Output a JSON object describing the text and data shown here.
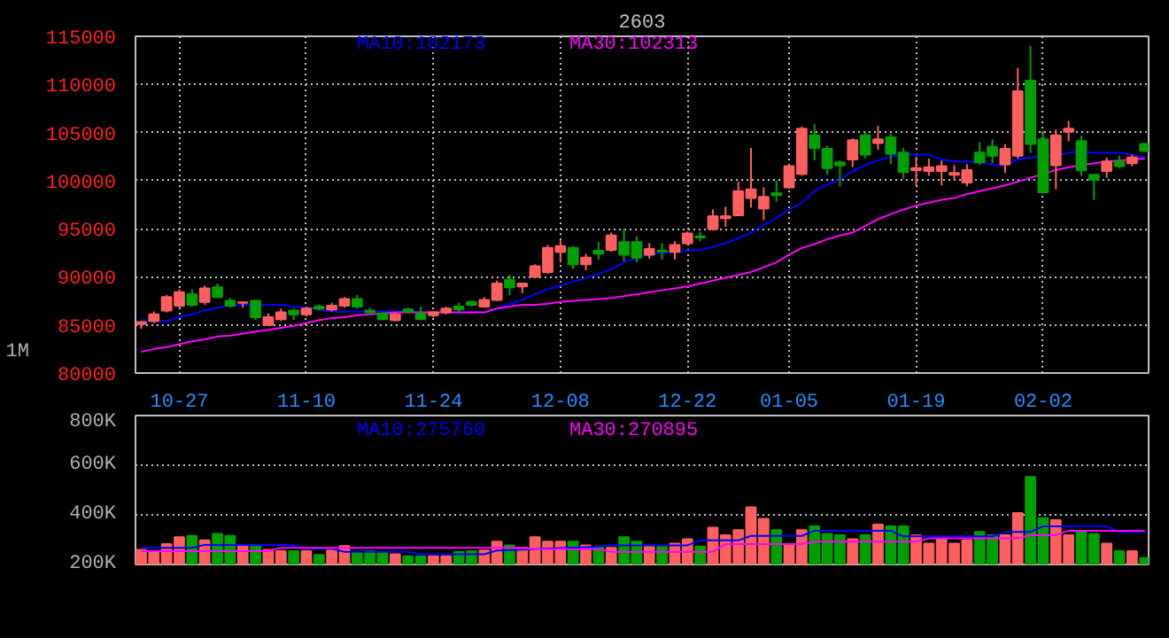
{
  "chart_data": [
    {
      "type": "candlestick",
      "title": "2603",
      "annotations": [
        "1M"
      ],
      "categories": [
        null,
        null,
        null,
        "10-27",
        null,
        null,
        null,
        null,
        null,
        null,
        null,
        null,
        null,
        "11-10",
        null,
        null,
        null,
        null,
        null,
        null,
        null,
        null,
        null,
        "11-24",
        null,
        null,
        null,
        null,
        null,
        null,
        null,
        null,
        null,
        "12-08",
        null,
        null,
        null,
        null,
        null,
        null,
        null,
        null,
        null,
        "12-22",
        null,
        null,
        null,
        null,
        null,
        null,
        null,
        "01-05",
        null,
        null,
        null,
        null,
        null,
        null,
        null,
        null,
        null,
        "01-19",
        null,
        null,
        null,
        null,
        null,
        null,
        null,
        null,
        null,
        "02-02",
        null,
        null,
        null,
        null,
        null,
        null,
        null,
        null
      ],
      "ohlc": [
        [
          85100,
          85400,
          84600,
          85300
        ],
        [
          85400,
          86400,
          85200,
          86100
        ],
        [
          86500,
          88100,
          86300,
          87900
        ],
        [
          87000,
          88700,
          86800,
          88400
        ],
        [
          88200,
          88700,
          86900,
          87100
        ],
        [
          87400,
          89100,
          87100,
          88800
        ],
        [
          88900,
          89300,
          87800,
          87900
        ],
        [
          87500,
          87800,
          86800,
          87000
        ],
        [
          87300,
          87400,
          86800,
          87350
        ],
        [
          87500,
          87600,
          85500,
          85800
        ],
        [
          85000,
          86200,
          84900,
          85800
        ],
        [
          85600,
          86700,
          85400,
          86300
        ],
        [
          86500,
          86700,
          85500,
          86100
        ],
        [
          86100,
          86900,
          85900,
          86700
        ],
        [
          86900,
          87100,
          86500,
          86700
        ],
        [
          86600,
          87300,
          86400,
          87000
        ],
        [
          87000,
          87900,
          86800,
          87700
        ],
        [
          87700,
          88100,
          86700,
          86900
        ],
        [
          86500,
          86800,
          86100,
          86300
        ],
        [
          86200,
          86300,
          85500,
          85600
        ],
        [
          85500,
          86300,
          85400,
          86100
        ],
        [
          86600,
          86800,
          86200,
          86400
        ],
        [
          86200,
          86900,
          85500,
          85600
        ],
        [
          86000,
          86400,
          85800,
          86300
        ],
        [
          86300,
          86900,
          86100,
          86700
        ],
        [
          86900,
          87300,
          86400,
          86600
        ],
        [
          87400,
          87500,
          86900,
          87100
        ],
        [
          86900,
          87900,
          86800,
          87600
        ],
        [
          87600,
          89600,
          87500,
          89300
        ],
        [
          89700,
          90200,
          88100,
          88900
        ],
        [
          89000,
          89400,
          88300,
          89300
        ],
        [
          90000,
          91300,
          89900,
          91100
        ],
        [
          90500,
          93300,
          90300,
          93000
        ],
        [
          92600,
          93800,
          91500,
          93200
        ],
        [
          93000,
          93200,
          90800,
          91300
        ],
        [
          91300,
          92400,
          90700,
          92000
        ],
        [
          92700,
          93600,
          91800,
          92400
        ],
        [
          92800,
          94600,
          92600,
          94300
        ],
        [
          93600,
          95000,
          91600,
          92300
        ],
        [
          93600,
          94200,
          91500,
          92000
        ],
        [
          92300,
          93500,
          91900,
          92900
        ],
        [
          92700,
          93500,
          91800,
          92650
        ],
        [
          92600,
          93700,
          91800,
          93300
        ],
        [
          93500,
          94700,
          93400,
          94500
        ],
        [
          94200,
          94700,
          93700,
          94100
        ],
        [
          95000,
          97000,
          94800,
          96300
        ],
        [
          96100,
          97300,
          95200,
          96300
        ],
        [
          96400,
          99900,
          96400,
          98900
        ],
        [
          98200,
          103400,
          97200,
          99100
        ],
        [
          97100,
          99300,
          95900,
          98300
        ],
        [
          98700,
          100000,
          97800,
          98500
        ],
        [
          99300,
          101600,
          99200,
          101500
        ],
        [
          100700,
          105600,
          100500,
          105400
        ],
        [
          104700,
          105900,
          102100,
          103400
        ],
        [
          103300,
          103600,
          100600,
          101300
        ],
        [
          101900,
          102100,
          99400,
          101600
        ],
        [
          102200,
          104400,
          101400,
          104200
        ],
        [
          104700,
          105000,
          102300,
          102700
        ],
        [
          103900,
          105700,
          103200,
          104300
        ],
        [
          104500,
          104900,
          101700,
          102800
        ],
        [
          102900,
          103400,
          100200,
          100900
        ],
        [
          101100,
          102500,
          99500,
          101300
        ],
        [
          101000,
          102300,
          100500,
          101400
        ],
        [
          101000,
          102100,
          99500,
          101500
        ],
        [
          100600,
          101600,
          100000,
          100800
        ],
        [
          99800,
          101700,
          99400,
          101100
        ],
        [
          102900,
          104000,
          101600,
          101900
        ],
        [
          103500,
          104300,
          101800,
          102600
        ],
        [
          101700,
          103800,
          100800,
          103300
        ],
        [
          102600,
          111700,
          102300,
          109300
        ],
        [
          110400,
          114000,
          102900,
          103800
        ],
        [
          104300,
          105200,
          98800,
          98800
        ],
        [
          101600,
          105300,
          99100,
          104700
        ],
        [
          105100,
          106200,
          104100,
          105400
        ],
        [
          104100,
          104700,
          100500,
          101100
        ],
        [
          100600,
          100700,
          98000,
          100100
        ],
        [
          101000,
          102400,
          100300,
          102000
        ],
        [
          102000,
          102600,
          101300,
          101500
        ],
        [
          101800,
          102700,
          101500,
          102400
        ],
        [
          103800,
          103900,
          103000,
          103100
        ]
      ],
      "colors": [
        "#ff5f5f",
        "#ff5f5f",
        "#ff5f5f",
        "#ff5f5f",
        "#00a000",
        "#ff5f5f",
        "#00a000",
        "#00a000",
        "#ff5f5f",
        "#00a000",
        "#ff5f5f",
        "#ff5f5f",
        "#00a000",
        "#ff5f5f",
        "#00a000",
        "#ff5f5f",
        "#ff5f5f",
        "#00a000",
        "#00a000",
        "#00a000",
        "#ff5f5f",
        "#00a000",
        "#00a000",
        "#ff5f5f",
        "#ff5f5f",
        "#00a000",
        "#00a000",
        "#ff5f5f",
        "#ff5f5f",
        "#00a000",
        "#ff5f5f",
        "#ff5f5f",
        "#ff5f5f",
        "#ff5f5f",
        "#00a000",
        "#ff5f5f",
        "#00a000",
        "#ff5f5f",
        "#00a000",
        "#00a000",
        "#ff5f5f",
        "#00a000",
        "#ff5f5f",
        "#ff5f5f",
        "#00a000",
        "#ff5f5f",
        "#ff5f5f",
        "#ff5f5f",
        "#ff5f5f",
        "#ff5f5f",
        "#00a000",
        "#ff5f5f",
        "#ff5f5f",
        "#00a000",
        "#00a000",
        "#00a000",
        "#ff5f5f",
        "#00a000",
        "#ff5f5f",
        "#00a000",
        "#00a000",
        "#ff5f5f",
        "#ff5f5f",
        "#ff5f5f",
        "#ff5f5f",
        "#ff5f5f",
        "#00a000",
        "#00a000",
        "#ff5f5f",
        "#ff5f5f",
        "#00a000",
        "#00a000",
        "#ff5f5f",
        "#ff5f5f",
        "#00a000",
        "#00a000",
        "#ff5f5f",
        "#00a000",
        "#ff5f5f",
        "#00a000"
      ],
      "series": [
        {
          "type": "line",
          "name": "MA10:102173",
          "color": "#0000ff",
          "values": [
            85500,
            85400,
            85400,
            85800,
            86100,
            86500,
            86800,
            87000,
            87100,
            87100,
            87100,
            87100,
            86900,
            86800,
            86600,
            86400,
            86400,
            86400,
            86400,
            86400,
            86400,
            86400,
            86300,
            86300,
            86300,
            86300,
            86300,
            86300,
            86700,
            87200,
            87600,
            88200,
            88700,
            89100,
            89500,
            89900,
            90300,
            90800,
            91500,
            92000,
            92300,
            92500,
            92600,
            92700,
            92800,
            93100,
            93500,
            94000,
            94600,
            95400,
            96100,
            97000,
            97700,
            98900,
            99600,
            100100,
            101000,
            101600,
            102100,
            102500,
            102700,
            102700,
            102700,
            102200,
            102000,
            102000,
            101900,
            101700,
            101600,
            102200,
            102400,
            102600,
            102600,
            102900,
            103000,
            102900,
            102900,
            102900,
            102700,
            102400
          ]
        },
        {
          "type": "line",
          "name": "MA30:102313",
          "color": "#ff00ff",
          "values": [
            82200,
            82500,
            82700,
            83000,
            83300,
            83500,
            83800,
            83900,
            84100,
            84300,
            84500,
            84700,
            84900,
            85200,
            85500,
            85700,
            85800,
            86000,
            86100,
            86200,
            86300,
            86300,
            86300,
            86300,
            86300,
            86300,
            86300,
            86300,
            86700,
            86900,
            87100,
            87100,
            87200,
            87400,
            87500,
            87600,
            87700,
            87800,
            88000,
            88200,
            88400,
            88600,
            88800,
            89000,
            89300,
            89600,
            89900,
            90200,
            90500,
            91000,
            91500,
            92300,
            93000,
            93400,
            93900,
            94300,
            94600,
            95300,
            96000,
            96500,
            97000,
            97400,
            97700,
            98000,
            98200,
            98600,
            98900,
            99200,
            99500,
            99900,
            100300,
            100700,
            101100,
            101400,
            101600,
            101800,
            102000,
            102100,
            102200,
            102300
          ]
        }
      ],
      "ylim": [
        80000,
        115000
      ],
      "yticks": [
        80000,
        85000,
        90000,
        95000,
        100000,
        105000,
        110000,
        115000
      ],
      "grid": true
    },
    {
      "type": "bar",
      "categories": [
        null,
        null,
        null,
        null,
        null,
        null,
        null,
        null,
        null,
        null,
        null,
        null,
        null,
        null,
        null,
        null,
        null,
        null,
        null,
        null,
        null,
        null,
        null,
        null,
        null,
        null,
        null,
        null,
        null,
        null,
        null,
        null,
        null,
        null,
        null,
        null,
        null,
        null,
        null,
        null,
        null,
        null,
        null,
        null,
        null,
        null,
        null,
        null,
        null,
        null,
        null,
        null,
        null,
        null,
        null,
        null,
        null,
        null,
        null,
        null,
        null,
        null,
        null,
        null,
        null,
        null,
        null,
        null,
        null,
        null,
        null,
        null,
        null,
        null,
        null,
        null,
        null,
        null,
        null,
        null
      ],
      "series": [
        {
          "type": "bar",
          "colors": [
            "#ff5f5f",
            "#ff5f5f",
            "#ff5f5f",
            "#ff5f5f",
            "#00a000",
            "#ff5f5f",
            "#00a000",
            "#00a000",
            "#ff5f5f",
            "#00a000",
            "#ff5f5f",
            "#ff5f5f",
            "#00a000",
            "#ff5f5f",
            "#00a000",
            "#ff5f5f",
            "#ff5f5f",
            "#00a000",
            "#00a000",
            "#00a000",
            "#ff5f5f",
            "#00a000",
            "#00a000",
            "#ff5f5f",
            "#ff5f5f",
            "#00a000",
            "#00a000",
            "#ff5f5f",
            "#ff5f5f",
            "#00a000",
            "#ff5f5f",
            "#ff5f5f",
            "#ff5f5f",
            "#ff5f5f",
            "#00a000",
            "#ff5f5f",
            "#00a000",
            "#ff5f5f",
            "#00a000",
            "#00a000",
            "#ff5f5f",
            "#00a000",
            "#ff5f5f",
            "#ff5f5f",
            "#00a000",
            "#ff5f5f",
            "#ff5f5f",
            "#ff5f5f",
            "#ff5f5f",
            "#ff5f5f",
            "#00a000",
            "#ff5f5f",
            "#ff5f5f",
            "#00a000",
            "#00a000",
            "#00a000",
            "#ff5f5f",
            "#00a000",
            "#ff5f5f",
            "#00a000",
            "#00a000",
            "#ff5f5f",
            "#ff5f5f",
            "#ff5f5f",
            "#ff5f5f",
            "#ff5f5f",
            "#00a000",
            "#00a000",
            "#ff5f5f",
            "#ff5f5f",
            "#00a000",
            "#00a000",
            "#ff5f5f",
            "#ff5f5f",
            "#00a000",
            "#00a000",
            "#ff5f5f",
            "#00a000",
            "#ff5f5f",
            "#00a000"
          ],
          "values": [
            259000,
            254000,
            282000,
            310000,
            315000,
            297000,
            323000,
            315000,
            279000,
            277000,
            259000,
            254000,
            254000,
            254000,
            238000,
            256000,
            274000,
            246000,
            254000,
            246000,
            241000,
            233000,
            233000,
            233000,
            233000,
            251000,
            254000,
            256000,
            292000,
            277000,
            267000,
            310000,
            292000,
            292000,
            292000,
            277000,
            272000,
            267000,
            310000,
            292000,
            272000,
            272000,
            284000,
            302000,
            272000,
            348000,
            318000,
            338000,
            430000,
            384000,
            338000,
            277000,
            338000,
            354000,
            323000,
            318000,
            302000,
            318000,
            361000,
            354000,
            354000,
            318000,
            284000,
            302000,
            284000,
            297000,
            331000,
            318000,
            318000,
            407000,
            553000,
            387000,
            379000,
            318000,
            331000,
            323000,
            284000,
            254000,
            254000,
            226000
          ]
        },
        {
          "type": "line",
          "name": "MA10:275760",
          "color": "#0000ff",
          "values": [
            267000,
            267000,
            267000,
            267000,
            267000,
            279000,
            279000,
            279000,
            279000,
            279000,
            279000,
            279000,
            279000,
            264000,
            264000,
            264000,
            251000,
            251000,
            251000,
            251000,
            251000,
            251000,
            241000,
            241000,
            241000,
            241000,
            241000,
            241000,
            256000,
            258000,
            260000,
            262000,
            264000,
            266000,
            268000,
            270000,
            272000,
            277000,
            277000,
            277000,
            277000,
            277000,
            277000,
            277000,
            297000,
            297000,
            297000,
            297000,
            315000,
            315000,
            315000,
            315000,
            315000,
            336000,
            336000,
            336000,
            336000,
            336000,
            336000,
            336000,
            313000,
            313000,
            313000,
            313000,
            313000,
            313000,
            313000,
            313000,
            331000,
            331000,
            331000,
            354000,
            354000,
            354000,
            354000,
            354000,
            354000,
            331000,
            331000,
            331000
          ]
        },
        {
          "type": "line",
          "name": "MA30:270895",
          "color": "#ff00ff",
          "values": [
            254000,
            254000,
            254000,
            254000,
            254000,
            254000,
            254000,
            254000,
            254000,
            254000,
            254000,
            267000,
            267000,
            267000,
            267000,
            267000,
            267000,
            267000,
            267000,
            267000,
            267000,
            267000,
            267000,
            267000,
            267000,
            267000,
            267000,
            267000,
            267000,
            267000,
            267000,
            262000,
            262000,
            262000,
            262000,
            262000,
            262000,
            251000,
            251000,
            251000,
            251000,
            251000,
            251000,
            251000,
            251000,
            251000,
            282000,
            282000,
            282000,
            282000,
            282000,
            282000,
            282000,
            292000,
            292000,
            292000,
            292000,
            292000,
            292000,
            292000,
            292000,
            292000,
            305000,
            305000,
            305000,
            305000,
            305000,
            305000,
            305000,
            305000,
            318000,
            318000,
            318000,
            336000,
            336000,
            336000,
            336000,
            336000,
            336000,
            336000
          ]
        }
      ],
      "ylim": [
        200000,
        800000
      ],
      "yticks": [
        {
          "value": 200000,
          "label": "200K"
        },
        {
          "value": 400000,
          "label": "400K"
        },
        {
          "value": 600000,
          "label": "600K"
        },
        {
          "value": 800000,
          "label": "800K"
        }
      ],
      "grid": true,
      "tick_labels": "y"
    }
  ]
}
